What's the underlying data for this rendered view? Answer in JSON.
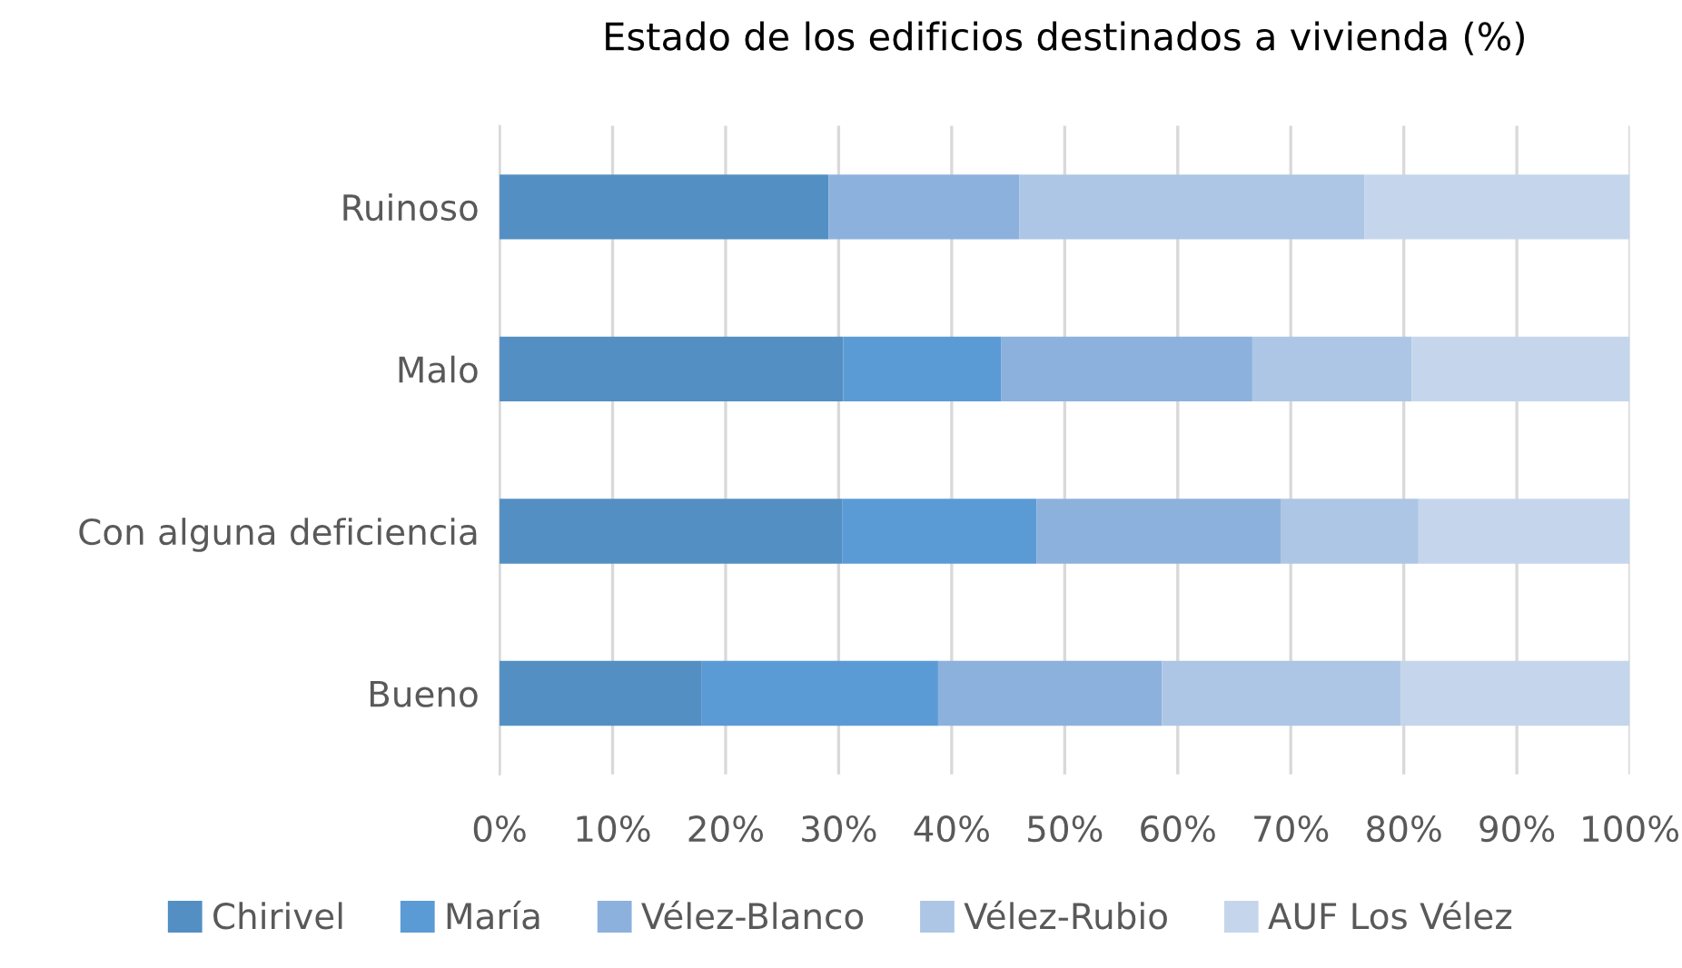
{
  "chart_data": {
    "type": "bar",
    "orientation": "horizontal",
    "stacked": true,
    "title": "Estado de los edificios destinados a vivienda (%)",
    "categories": [
      "Ruinoso",
      "Malo",
      "Con alguna deficiencia",
      "Bueno"
    ],
    "series": [
      {
        "name": "Chirivel",
        "color": "#538fc3",
        "values": [
          29.1,
          30.4,
          30.3,
          17.9
        ]
      },
      {
        "name": "María",
        "color": "#5b9bd5",
        "values": [
          null,
          14.0,
          17.2,
          20.9
        ]
      },
      {
        "name": "Vélez-Blanco",
        "color": "#8cb1dd",
        "values": [
          16.9,
          22.2,
          21.6,
          19.8
        ]
      },
      {
        "name": "Vélez-Rubio",
        "color": "#adc6e5",
        "values": [
          30.5,
          14.1,
          12.2,
          21.1
        ]
      },
      {
        "name": "AUF Los Vélez",
        "color": "#c5d6ec",
        "values": [
          23.5,
          19.3,
          18.7,
          20.3
        ]
      }
    ],
    "xlim": [
      0,
      100
    ],
    "xticks": [
      {
        "value": 0,
        "label": "0%"
      },
      {
        "value": 10,
        "label": "10%"
      },
      {
        "value": 20,
        "label": "20%"
      },
      {
        "value": 30,
        "label": "30%"
      },
      {
        "value": 40,
        "label": "40%"
      },
      {
        "value": 50,
        "label": "50%"
      },
      {
        "value": 60,
        "label": "60%"
      },
      {
        "value": 70,
        "label": "70%"
      },
      {
        "value": 80,
        "label": "80%"
      },
      {
        "value": 90,
        "label": "90%"
      },
      {
        "value": 100,
        "label": "100%"
      }
    ],
    "grid": "x",
    "legend": "bottom"
  }
}
